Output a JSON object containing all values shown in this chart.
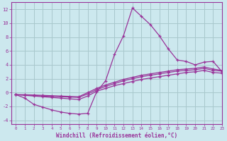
{
  "xlabel": "Windchill (Refroidissement éolien,°C)",
  "bg_color": "#cce8ee",
  "line_color": "#993399",
  "grid_color": "#a8c8cc",
  "xlim": [
    -0.5,
    23
  ],
  "ylim": [
    -4.5,
    13
  ],
  "yticks": [
    -4,
    -2,
    0,
    2,
    4,
    6,
    8,
    10,
    12
  ],
  "xticks": [
    0,
    1,
    2,
    3,
    4,
    5,
    6,
    7,
    8,
    9,
    10,
    11,
    12,
    13,
    14,
    15,
    16,
    17,
    18,
    19,
    20,
    21,
    22,
    23
  ],
  "line1_x": [
    0,
    1,
    2,
    3,
    4,
    5,
    6,
    7,
    8,
    9,
    10,
    11,
    12,
    13,
    14,
    15,
    16,
    17,
    18,
    19,
    20,
    21,
    22,
    23
  ],
  "line1_y": [
    -0.3,
    -0.8,
    -1.7,
    -2.1,
    -2.5,
    -2.8,
    -3.0,
    -3.1,
    -3.0,
    0.1,
    1.7,
    5.5,
    8.2,
    12.2,
    11.0,
    9.8,
    8.2,
    6.3,
    4.7,
    4.5,
    4.0,
    4.4,
    4.5,
    3.0
  ],
  "line2_x": [
    0,
    1,
    2,
    3,
    4,
    5,
    6,
    7,
    8,
    9,
    10,
    11,
    12,
    13,
    14,
    15,
    16,
    17,
    18,
    19,
    20,
    21,
    22,
    23
  ],
  "line2_y": [
    -0.3,
    -0.4,
    -0.5,
    -0.6,
    -0.7,
    -0.8,
    -0.9,
    -1.0,
    -0.5,
    0.2,
    0.6,
    1.0,
    1.3,
    1.6,
    1.9,
    2.1,
    2.3,
    2.5,
    2.7,
    2.9,
    3.0,
    3.2,
    2.9,
    2.8
  ],
  "line3_x": [
    0,
    1,
    2,
    3,
    4,
    5,
    6,
    7,
    8,
    9,
    10,
    11,
    12,
    13,
    14,
    15,
    16,
    17,
    18,
    19,
    20,
    21,
    22,
    23
  ],
  "line3_y": [
    -0.3,
    -0.35,
    -0.4,
    -0.5,
    -0.55,
    -0.6,
    -0.65,
    -0.7,
    -0.2,
    0.4,
    0.9,
    1.3,
    1.7,
    2.0,
    2.3,
    2.5,
    2.7,
    2.9,
    3.1,
    3.2,
    3.3,
    3.5,
    3.2,
    3.1
  ],
  "line4_x": [
    0,
    1,
    2,
    3,
    4,
    5,
    6,
    7,
    8,
    9,
    10,
    11,
    12,
    13,
    14,
    15,
    16,
    17,
    18,
    19,
    20,
    21,
    22,
    23
  ],
  "line4_y": [
    -0.3,
    -0.3,
    -0.35,
    -0.4,
    -0.45,
    -0.5,
    -0.55,
    -0.6,
    0.0,
    0.6,
    1.1,
    1.5,
    1.9,
    2.2,
    2.5,
    2.7,
    2.9,
    3.1,
    3.3,
    3.4,
    3.5,
    3.7,
    3.4,
    3.2
  ]
}
